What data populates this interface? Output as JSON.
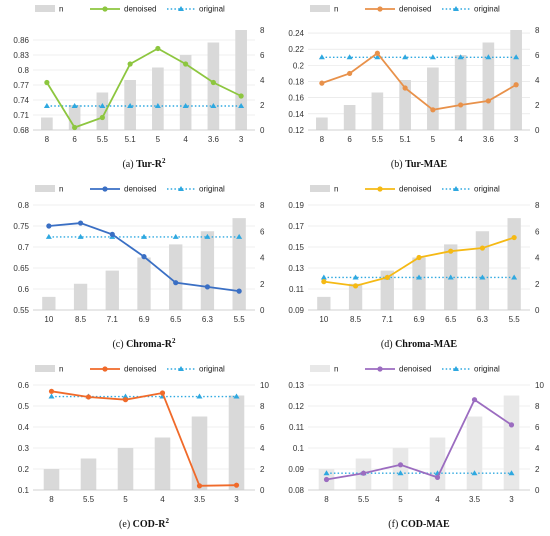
{
  "colors": {
    "bar": "#d9d9d9",
    "bar_light": "#e8e8e8",
    "original": "#2ea8e0",
    "grid": "#e0e0e0",
    "axis": "#c8c8c8"
  },
  "chart_data": [
    {
      "type": "bar+line",
      "panel_label": "(a)",
      "caption_name": "Tur-R",
      "caption_sup": "2",
      "categories": [
        "8",
        "6",
        "5.5",
        "5.1",
        "5",
        "4",
        "3.6",
        "3"
      ],
      "series": [
        {
          "name": "n",
          "kind": "bar",
          "axis": "right",
          "values": [
            1,
            2,
            3,
            4,
            5,
            6,
            7,
            8
          ]
        },
        {
          "name": "denoised",
          "kind": "line",
          "axis": "left",
          "color": "#8dc63f",
          "values": [
            0.775,
            0.685,
            0.705,
            0.812,
            0.843,
            0.812,
            0.775,
            0.748
          ]
        },
        {
          "name": "original",
          "kind": "dotted",
          "axis": "left",
          "color": "#2ea8e0",
          "values": [
            0.728,
            0.728,
            0.728,
            0.728,
            0.728,
            0.728,
            0.728,
            0.728
          ]
        }
      ],
      "left_ticks": [
        "0.68",
        "0.71",
        "0.74",
        "0.77",
        "0.8",
        "0.83",
        "0.86"
      ],
      "left_ylim": [
        0.68,
        0.89
      ],
      "right_ticks": [
        "0",
        "2",
        "4",
        "6",
        "8"
      ],
      "right_ylim": [
        0,
        8.4
      ]
    },
    {
      "type": "bar+line",
      "panel_label": "(b)",
      "caption_name": "Tur-MAE",
      "caption_sup": "",
      "categories": [
        "8",
        "6",
        "5.5",
        "5.1",
        "5",
        "4",
        "3.6",
        "3"
      ],
      "series": [
        {
          "name": "n",
          "kind": "bar",
          "axis": "right",
          "values": [
            1,
            2,
            3,
            4,
            5,
            6,
            7,
            8
          ]
        },
        {
          "name": "denoised",
          "kind": "line",
          "axis": "left",
          "color": "#e8914a",
          "values": [
            0.178,
            0.19,
            0.215,
            0.172,
            0.145,
            0.151,
            0.156,
            0.176
          ]
        },
        {
          "name": "original",
          "kind": "dotted",
          "axis": "left",
          "color": "#2ea8e0",
          "values": [
            0.21,
            0.21,
            0.21,
            0.21,
            0.21,
            0.21,
            0.21,
            0.21
          ]
        }
      ],
      "left_ticks": [
        "0.12",
        "0.14",
        "0.16",
        "0.18",
        "0.2",
        "0.22",
        "0.24"
      ],
      "left_ylim": [
        0.12,
        0.25
      ],
      "right_ticks": [
        "0",
        "2",
        "4",
        "6",
        "8"
      ],
      "right_ylim": [
        0,
        8.4
      ]
    },
    {
      "type": "bar+line",
      "panel_label": "(c)",
      "caption_name": "Chroma-R",
      "caption_sup": "2",
      "categories": [
        "10",
        "8.5",
        "7.1",
        "6.9",
        "6.5",
        "6.3",
        "5.5"
      ],
      "series": [
        {
          "name": "n",
          "kind": "bar",
          "axis": "right",
          "values": [
            1,
            2,
            3,
            4,
            5,
            6,
            7
          ]
        },
        {
          "name": "denoised",
          "kind": "line",
          "axis": "left",
          "color": "#3a6fc4",
          "values": [
            0.75,
            0.757,
            0.73,
            0.677,
            0.615,
            0.605,
            0.595
          ]
        },
        {
          "name": "original",
          "kind": "dotted",
          "axis": "left",
          "color": "#2ea8e0",
          "values": [
            0.724,
            0.724,
            0.724,
            0.724,
            0.724,
            0.724,
            0.724
          ]
        }
      ],
      "left_ticks": [
        "0.55",
        "0.6",
        "0.65",
        "0.7",
        "0.75",
        "0.8"
      ],
      "left_ylim": [
        0.55,
        0.8
      ],
      "right_ticks": [
        "0",
        "2",
        "4",
        "6",
        "8"
      ],
      "right_ylim": [
        0,
        8
      ]
    },
    {
      "type": "bar+line",
      "panel_label": "(d)",
      "caption_name": "Chroma-MAE",
      "caption_sup": "",
      "categories": [
        "10",
        "8.5",
        "7.1",
        "6.9",
        "6.5",
        "6.3",
        "5.5"
      ],
      "series": [
        {
          "name": "n",
          "kind": "bar",
          "axis": "right",
          "values": [
            1,
            2,
            3,
            4,
            5,
            6,
            7
          ]
        },
        {
          "name": "denoised",
          "kind": "line",
          "axis": "left",
          "color": "#f5b914",
          "values": [
            0.117,
            0.113,
            0.121,
            0.14,
            0.146,
            0.149,
            0.159
          ]
        },
        {
          "name": "original",
          "kind": "dotted",
          "axis": "left",
          "color": "#2ea8e0",
          "values": [
            0.121,
            0.121,
            0.121,
            0.121,
            0.121,
            0.121,
            0.121
          ]
        }
      ],
      "left_ticks": [
        "0.09",
        "0.11",
        "0.13",
        "0.15",
        "0.17",
        "0.19"
      ],
      "left_ylim": [
        0.09,
        0.19
      ],
      "right_ticks": [
        "0",
        "2",
        "4",
        "6",
        "8"
      ],
      "right_ylim": [
        0,
        8
      ]
    },
    {
      "type": "bar+line",
      "panel_label": "(e)",
      "caption_name": "COD-R",
      "caption_sup": "2",
      "categories": [
        "8",
        "5.5",
        "5",
        "4",
        "3.5",
        "3"
      ],
      "series": [
        {
          "name": "n",
          "kind": "bar",
          "axis": "right",
          "values": [
            2,
            3,
            4,
            5,
            7,
            9
          ]
        },
        {
          "name": "denoised",
          "kind": "line",
          "axis": "left",
          "color": "#f06a2a",
          "values": [
            0.57,
            0.543,
            0.53,
            0.562,
            0.12,
            0.123
          ]
        },
        {
          "name": "original",
          "kind": "dotted",
          "axis": "left",
          "color": "#2ea8e0",
          "values": [
            0.545,
            0.545,
            0.545,
            0.545,
            0.545,
            0.545
          ]
        }
      ],
      "left_ticks": [
        "0.1",
        "0.2",
        "0.3",
        "0.4",
        "0.5",
        "0.6"
      ],
      "left_ylim": [
        0.1,
        0.6
      ],
      "right_ticks": [
        "0",
        "2",
        "4",
        "6",
        "8",
        "10"
      ],
      "right_ylim": [
        0,
        10
      ]
    },
    {
      "type": "bar+line",
      "panel_label": "(f)",
      "caption_name": "COD-MAE",
      "caption_sup": "",
      "categories": [
        "8",
        "5.5",
        "5",
        "4",
        "3.5",
        "3"
      ],
      "series": [
        {
          "name": "n",
          "kind": "bar",
          "axis": "right",
          "values": [
            2,
            3,
            4,
            5,
            7,
            9
          ]
        },
        {
          "name": "denoised",
          "kind": "line",
          "axis": "left",
          "color": "#9b6cc0",
          "values": [
            0.085,
            0.088,
            0.092,
            0.086,
            0.123,
            0.111
          ]
        },
        {
          "name": "original",
          "kind": "dotted",
          "axis": "left",
          "color": "#2ea8e0",
          "values": [
            0.088,
            0.088,
            0.088,
            0.088,
            0.088,
            0.088
          ]
        }
      ],
      "left_ticks": [
        "0.08",
        "0.09",
        "0.1",
        "0.11",
        "0.12",
        "0.13"
      ],
      "left_ylim": [
        0.08,
        0.13
      ],
      "right_ticks": [
        "0",
        "2",
        "4",
        "6",
        "8",
        "10"
      ],
      "right_ylim": [
        0,
        10
      ]
    }
  ]
}
